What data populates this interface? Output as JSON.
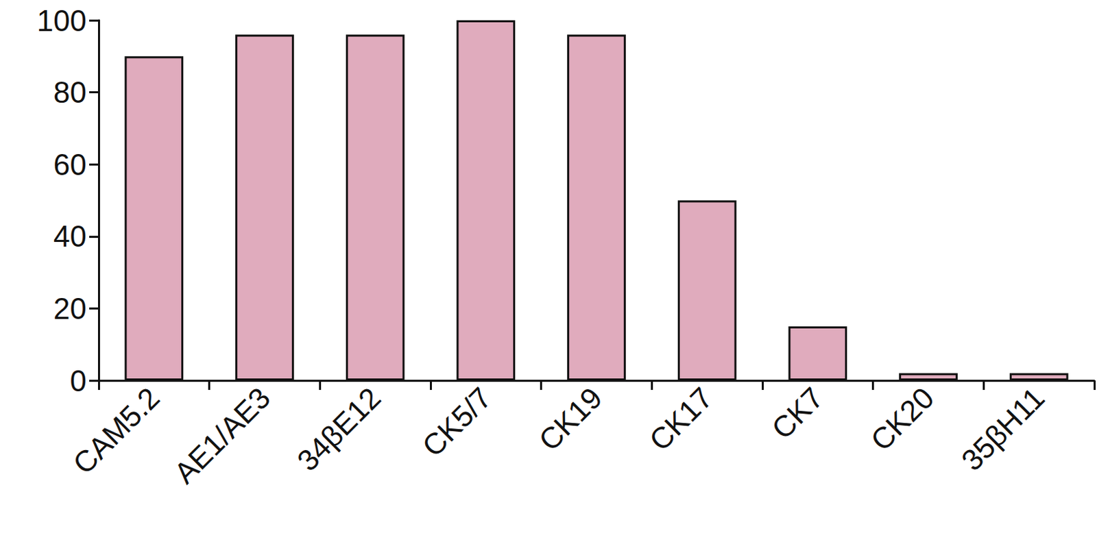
{
  "chart_data": {
    "type": "bar",
    "categories": [
      "CAM5.2",
      "AE1/AE3",
      "34βE12",
      "CK5/7",
      "CK19",
      "CK17",
      "CK7",
      "CK20",
      "35βH11"
    ],
    "values": [
      90,
      96,
      96,
      100,
      96,
      50,
      15,
      2,
      2
    ],
    "color": "#e0abbd",
    "ylim": [
      0,
      100
    ],
    "yticks": [
      0,
      20,
      40,
      60,
      80,
      100
    ],
    "grid": false
  }
}
